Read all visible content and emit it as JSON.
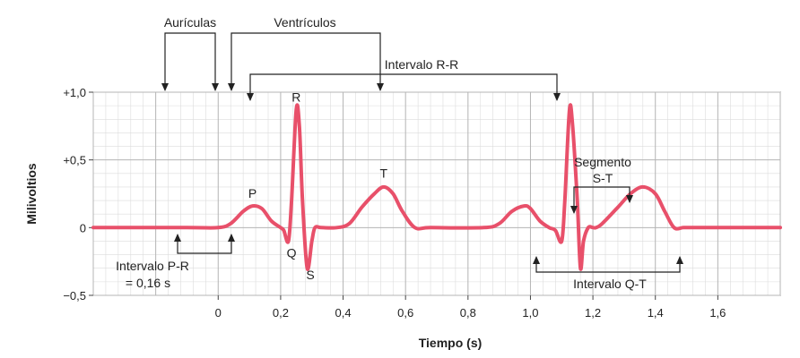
{
  "chart_data": {
    "type": "line",
    "xlabel": "Tiempo (s)",
    "ylabel": "Milivoltios",
    "xlim": [
      -0.4,
      1.8
    ],
    "ylim": [
      -0.5,
      1.0
    ],
    "x_ticks": [
      {
        "value": 0,
        "label": "0"
      },
      {
        "value": 0.2,
        "label": "0,2"
      },
      {
        "value": 0.4,
        "label": "0,4"
      },
      {
        "value": 0.6,
        "label": "0,6"
      },
      {
        "value": 0.8,
        "label": "0,8"
      },
      {
        "value": 1.0,
        "label": "1,0"
      },
      {
        "value": 1.2,
        "label": "1,2"
      },
      {
        "value": 1.4,
        "label": "1,4"
      },
      {
        "value": 1.6,
        "label": "1,6"
      }
    ],
    "y_ticks": [
      {
        "value": 1.0,
        "label": "+1,0"
      },
      {
        "value": 0.5,
        "label": "+0,5"
      },
      {
        "value": 0,
        "label": "0"
      },
      {
        "value": -0.5,
        "label": "−0,5"
      }
    ],
    "grid": true,
    "line_color": "#e8506a",
    "series": [
      {
        "x": [
          -0.4,
          -0.1,
          0.0,
          0.04,
          0.08,
          0.11,
          0.14,
          0.17,
          0.2,
          0.21,
          0.225,
          0.235,
          0.25,
          0.26,
          0.27,
          0.285,
          0.3,
          0.31,
          0.33,
          0.38,
          0.42,
          0.46,
          0.5,
          0.53,
          0.56,
          0.59,
          0.63,
          0.68,
          0.85,
          0.9,
          0.94,
          0.98,
          1.0,
          1.03,
          1.06,
          1.08,
          1.1,
          1.11,
          1.125,
          1.135,
          1.15,
          1.16,
          1.17,
          1.185,
          1.2,
          1.21,
          1.23,
          1.28,
          1.32,
          1.36,
          1.4,
          1.43,
          1.46,
          1.49,
          1.53,
          1.6,
          1.8
        ],
        "y": [
          0,
          0,
          0,
          0.03,
          0.12,
          0.16,
          0.14,
          0.05,
          0,
          -0.02,
          -0.1,
          0.2,
          0.87,
          0.75,
          0.2,
          -0.3,
          -0.1,
          0,
          0,
          0,
          0.03,
          0.15,
          0.25,
          0.3,
          0.25,
          0.12,
          0,
          0,
          0,
          0.03,
          0.12,
          0.16,
          0.14,
          0.05,
          0,
          -0.02,
          -0.1,
          0.2,
          0.87,
          0.75,
          0.2,
          -0.3,
          -0.1,
          0,
          0,
          0,
          0.03,
          0.15,
          0.25,
          0.3,
          0.25,
          0.12,
          0,
          0,
          0,
          0,
          0
        ]
      }
    ],
    "wave_labels": [
      {
        "text": "P",
        "x": 0.11,
        "y": 0.22
      },
      {
        "text": "R",
        "x": 0.25,
        "y": 0.93
      },
      {
        "text": "Q",
        "x": 0.235,
        "y": -0.22
      },
      {
        "text": "S",
        "x": 0.295,
        "y": -0.38
      },
      {
        "text": "T",
        "x": 0.53,
        "y": 0.37
      }
    ],
    "annotations": {
      "auriculas": "Aurículas",
      "ventriculos": "Ventrículos",
      "rr": "Intervalo R-R",
      "pr_line1": "Intervalo P-R",
      "pr_line2": "= 0,16 s",
      "st_line1": "Segmento",
      "st_line2": "S-T",
      "qt": "Intervalo Q-T"
    }
  }
}
